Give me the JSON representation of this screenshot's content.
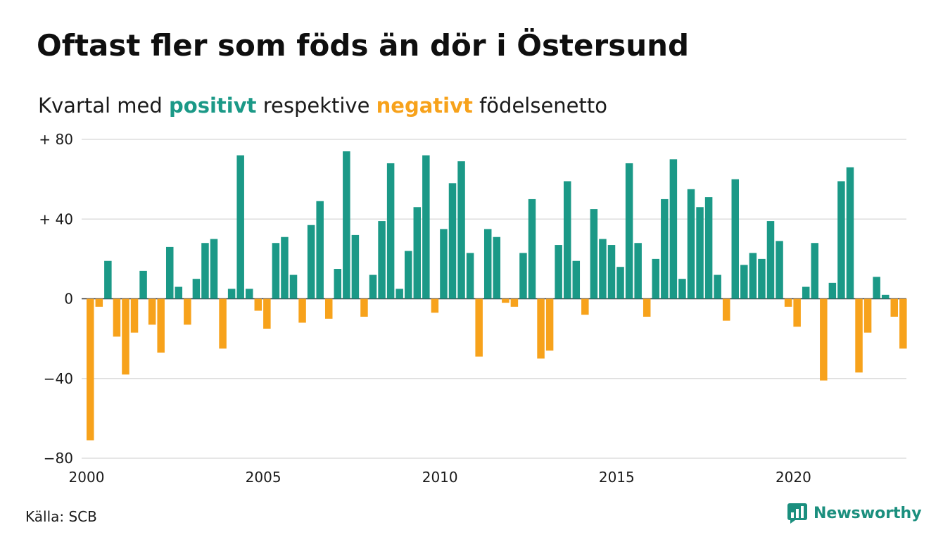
{
  "header": {
    "title": "Oftast fler som föds än dör i Östersund",
    "subtitle_prefix": "Kvartal med ",
    "subtitle_positive": "positivt",
    "subtitle_middle": " respektive ",
    "subtitle_negative": "negativt",
    "subtitle_suffix": " födelsenetto"
  },
  "footer": {
    "source": "Källa: SCB",
    "brand": "Newsworthy",
    "brand_icon": "bar-chart-logo-icon"
  },
  "colors": {
    "positive": "#1b9987",
    "negative": "#f7a21b",
    "grid": "#dddddd"
  },
  "chart_data": {
    "type": "bar",
    "title": "Oftast fler som föds än dör i Östersund",
    "subtitle": "Kvartal med positivt respektive negativt födelsenetto",
    "xlabel": "",
    "ylabel": "",
    "ylim": [
      -80,
      80
    ],
    "yticks": [
      {
        "value": 80,
        "label": "+ 80"
      },
      {
        "value": 40,
        "label": "+ 40"
      },
      {
        "value": 0,
        "label": "0"
      },
      {
        "value": -40,
        "label": "−40"
      },
      {
        "value": -80,
        "label": "−80"
      }
    ],
    "xticks": [
      {
        "value": 2000,
        "label": "2000"
      },
      {
        "value": 2005,
        "label": "2005"
      },
      {
        "value": 2010,
        "label": "2010"
      },
      {
        "value": 2015,
        "label": "2015"
      },
      {
        "value": 2020,
        "label": "2020"
      }
    ],
    "grid": true,
    "legend": "none",
    "x_start": "2000 Q1",
    "frequency": "quarterly",
    "values": [
      -71,
      -4,
      19,
      -19,
      -38,
      -17,
      14,
      -13,
      -27,
      26,
      6,
      -13,
      10,
      28,
      30,
      -25,
      5,
      72,
      5,
      -6,
      -15,
      28,
      31,
      12,
      -12,
      37,
      49,
      -10,
      15,
      74,
      32,
      -9,
      12,
      39,
      68,
      5,
      24,
      46,
      72,
      -7,
      35,
      58,
      69,
      23,
      -29,
      35,
      31,
      -2,
      -4,
      23,
      50,
      -30,
      -26,
      27,
      59,
      19,
      -8,
      45,
      30,
      27,
      16,
      68,
      28,
      -9,
      20,
      50,
      70,
      10,
      55,
      46,
      51,
      12,
      -11,
      60,
      17,
      23,
      20,
      39,
      29,
      -4,
      -14,
      6,
      28,
      -41,
      8,
      59,
      66,
      -37,
      -17,
      11,
      2,
      -9,
      -25
    ]
  }
}
